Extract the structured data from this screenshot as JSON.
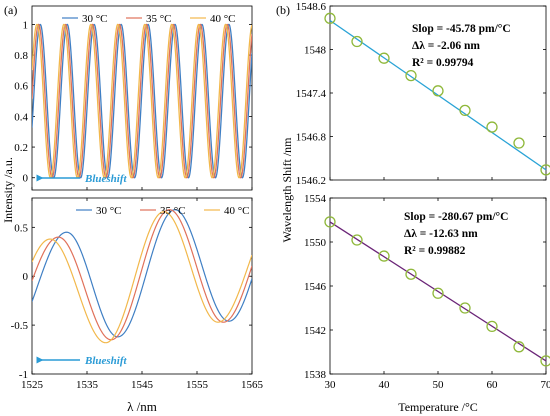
{
  "figure": {
    "panel_a_label": "(a)",
    "panel_b_label": "(b)",
    "left_ylabel": "Intensity /a.u.",
    "left_xlabel": "λ /nm",
    "right_ylabel": "Wavelength Shift /nm",
    "right_xlabel": "Temperature /°C"
  },
  "colors": {
    "s30": "#3f7fc4",
    "s35": "#e0715a",
    "s40": "#f2b84b",
    "blueshift": "#2a9bd6",
    "fit_top": "#29a3d6",
    "fit_bottom": "#6a2477",
    "marker": "#8fb83a"
  },
  "chart_data": [
    {
      "id": "a-top",
      "type": "line",
      "title": "",
      "xlabel": "",
      "ylabel": "",
      "xlim": [
        1525,
        1565
      ],
      "ylim": [
        -0.08,
        1.12
      ],
      "yticks": [
        0,
        0.2,
        0.4,
        0.6,
        0.8,
        1
      ],
      "ytick_labels": [
        "0",
        "0.2",
        "0.4",
        "0.6",
        "0.8",
        "1"
      ],
      "legend": "top",
      "annotation": "Blueshift",
      "series": [
        {
          "name": "30 °C",
          "color": "#3f7fc4",
          "peaks_nm": [
            1526.5,
            1531.4,
            1536.3,
            1541.2,
            1546.1,
            1551.0,
            1555.9,
            1560.8
          ]
        },
        {
          "name": "35 °C",
          "color": "#e0715a",
          "peaks_nm": [
            1526.2,
            1531.1,
            1536.0,
            1540.9,
            1545.8,
            1550.7,
            1555.6,
            1560.5
          ]
        },
        {
          "name": "40 °C",
          "color": "#f2b84b",
          "peaks_nm": [
            1525.9,
            1530.8,
            1535.7,
            1540.6,
            1545.5,
            1550.4,
            1555.3,
            1560.2
          ]
        }
      ],
      "peak_value": 1.0,
      "min_value": 0.0
    },
    {
      "id": "a-bottom",
      "type": "line",
      "title": "",
      "xlabel": "λ /nm",
      "ylabel": "",
      "xlim": [
        1525,
        1565
      ],
      "ylim": [
        -1,
        0.8
      ],
      "xticks": [
        1525,
        1535,
        1545,
        1555,
        1565
      ],
      "yticks": [
        -1,
        -0.5,
        0,
        0.5
      ],
      "ytick_labels": [
        "-1",
        "-0.5",
        "0",
        "0.5"
      ],
      "legend": "top",
      "annotation": "Blueshift",
      "series": [
        {
          "name": "30 °C",
          "color": "#3f7fc4",
          "peaks_nm": [
            1531.3,
            1551.0
          ],
          "troughs_nm": [
            1540.6,
            1560.8
          ],
          "peak_values": [
            0.45,
            0.68
          ],
          "trough_values": [
            -0.62,
            -0.46
          ]
        },
        {
          "name": "35 °C",
          "color": "#e0715a",
          "peaks_nm": [
            1529.8,
            1550.0
          ],
          "troughs_nm": [
            1539.4,
            1559.8
          ],
          "peak_values": [
            0.4,
            0.68
          ],
          "trough_values": [
            -0.65,
            -0.47
          ]
        },
        {
          "name": "40 °C",
          "color": "#f2b84b",
          "peaks_nm": [
            1528.3,
            1549.0
          ],
          "troughs_nm": [
            1538.4,
            1558.8
          ],
          "peak_values": [
            0.38,
            0.66
          ],
          "trough_values": [
            -0.68,
            -0.47
          ]
        }
      ]
    },
    {
      "id": "b-top",
      "type": "scatter",
      "title": "",
      "xlabel": "",
      "ylabel": "",
      "xlim": [
        30,
        70
      ],
      "ylim": [
        1546.2,
        1548.6
      ],
      "yticks": [
        1546.2,
        1546.8,
        1547.4,
        1548,
        1548.6
      ],
      "ytick_labels": [
        "1546.2",
        "1546.8",
        "1547.4",
        "1548",
        "1548.6"
      ],
      "x": [
        30,
        35,
        40,
        45,
        50,
        55,
        60,
        65,
        70
      ],
      "y": [
        1548.43,
        1548.11,
        1547.88,
        1547.64,
        1547.43,
        1547.16,
        1546.93,
        1546.71,
        1546.34
      ],
      "fit": {
        "x": [
          30,
          70
        ],
        "y": [
          1548.4,
          1546.34
        ]
      },
      "annotations": [
        "Slop = -45.78 pm/°C",
        "Δλ = -2.06 nm",
        "R² = 0.99794"
      ]
    },
    {
      "id": "b-bottom",
      "type": "scatter",
      "title": "",
      "xlabel": "Temperature /°C",
      "ylabel": "",
      "xlim": [
        30,
        70
      ],
      "ylim": [
        1538,
        1554
      ],
      "xticks": [
        30,
        40,
        50,
        60,
        70
      ],
      "yticks": [
        1538,
        1542,
        1546,
        1550,
        1554
      ],
      "ytick_labels": [
        "1538",
        "1542",
        "1546",
        "1550",
        "1554"
      ],
      "x": [
        30,
        35,
        40,
        45,
        50,
        55,
        60,
        65,
        70
      ],
      "y": [
        1551.83,
        1550.18,
        1548.72,
        1547.07,
        1545.34,
        1544.0,
        1542.33,
        1540.47,
        1539.19
      ],
      "fit": {
        "x": [
          30,
          70
        ],
        "y": [
          1551.82,
          1539.19
        ]
      },
      "annotations": [
        "Slop = -280.67 pm/°C",
        "Δλ = -12.63 nm",
        "R² = 0.99882"
      ]
    }
  ]
}
